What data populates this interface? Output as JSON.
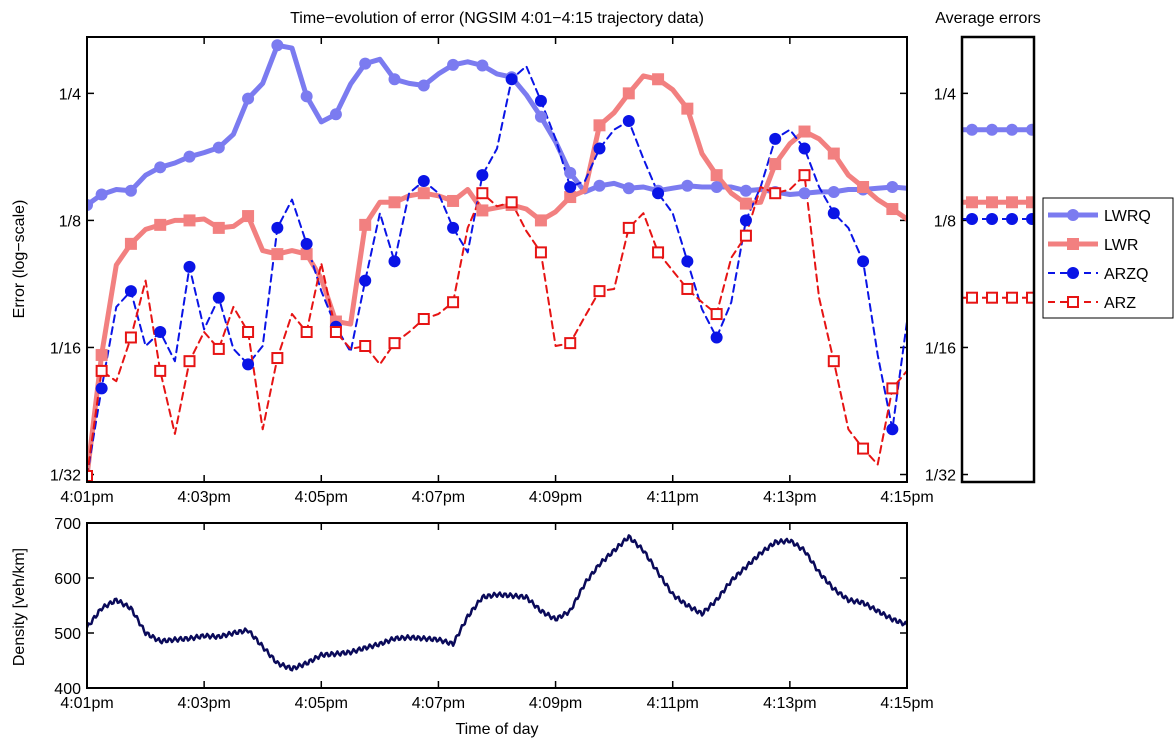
{
  "chart_data": [
    {
      "type": "line",
      "title": "Time−evolution of error (NGSIM 4:01−4:15 trajectory data)",
      "xlabel": "",
      "ylabel": "Error (log−scale)",
      "yscale": "log2",
      "ylim": [
        0.03,
        0.34
      ],
      "yticks": [
        0.03125,
        0.0625,
        0.125,
        0.25
      ],
      "yticklabels": [
        "1/32",
        "1/16",
        "1/8",
        "1/4"
      ],
      "xlim": [
        1,
        15
      ],
      "xticks": [
        1,
        3,
        5,
        7,
        9,
        11,
        13,
        15
      ],
      "xticklabels": [
        "4:01pm",
        "4:03pm",
        "4:05pm",
        "4:07pm",
        "4:09pm",
        "4:11pm",
        "4:13pm",
        "4:15pm"
      ],
      "x_unit": "minutes after 4:00pm",
      "legend_position": "right",
      "series": [
        {
          "name": "LWRQ",
          "color": "#7b7bf0",
          "linestyle": "solid",
          "marker": "circle-filled",
          "x": [
            1.0,
            1.25,
            1.5,
            1.75,
            2.0,
            2.25,
            2.5,
            2.75,
            3.0,
            3.25,
            3.5,
            3.75,
            4.0,
            4.25,
            4.5,
            4.75,
            5.0,
            5.25,
            5.5,
            5.75,
            6.0,
            6.25,
            6.5,
            6.75,
            7.0,
            7.25,
            7.5,
            7.75,
            8.0,
            8.25,
            8.5,
            8.75,
            9.0,
            9.25,
            9.5,
            9.75,
            10.0,
            10.25,
            10.5,
            10.75,
            11.0,
            11.25,
            11.5,
            11.75,
            12.0,
            12.25,
            12.5,
            12.75,
            13.0,
            13.25,
            13.5,
            13.75,
            14.0,
            14.25,
            14.5,
            14.75,
            15.0
          ],
          "y": [
            0.136,
            0.144,
            0.148,
            0.147,
            0.16,
            0.167,
            0.171,
            0.177,
            0.181,
            0.186,
            0.2,
            0.243,
            0.264,
            0.325,
            0.32,
            0.246,
            0.214,
            0.223,
            0.263,
            0.294,
            0.301,
            0.27,
            0.264,
            0.261,
            0.278,
            0.292,
            0.297,
            0.291,
            0.278,
            0.273,
            0.248,
            0.22,
            0.192,
            0.162,
            0.146,
            0.151,
            0.153,
            0.149,
            0.15,
            0.147,
            0.149,
            0.151,
            0.15,
            0.15,
            0.15,
            0.147,
            0.148,
            0.146,
            0.144,
            0.145,
            0.146,
            0.146,
            0.148,
            0.148,
            0.149,
            0.15,
            0.149
          ]
        },
        {
          "name": "LWR",
          "color": "#f28080",
          "linestyle": "solid",
          "marker": "square-filled",
          "x": [
            1.0,
            1.25,
            1.5,
            1.75,
            2.0,
            2.25,
            2.5,
            2.75,
            3.0,
            3.25,
            3.5,
            3.75,
            4.0,
            4.25,
            4.5,
            4.75,
            5.0,
            5.25,
            5.5,
            5.75,
            6.0,
            6.25,
            6.5,
            6.75,
            7.0,
            7.25,
            7.5,
            7.75,
            8.0,
            8.25,
            8.5,
            8.75,
            9.0,
            9.25,
            9.5,
            9.75,
            10.0,
            10.25,
            10.5,
            10.75,
            11.0,
            11.25,
            11.5,
            11.75,
            12.0,
            12.25,
            12.5,
            12.75,
            13.0,
            13.25,
            13.5,
            13.75,
            14.0,
            14.25,
            14.5,
            14.75,
            15.0
          ],
          "y": [
            0.031,
            0.06,
            0.098,
            0.11,
            0.119,
            0.122,
            0.125,
            0.125,
            0.126,
            0.12,
            0.121,
            0.128,
            0.106,
            0.104,
            0.106,
            0.104,
            0.091,
            0.072,
            0.071,
            0.122,
            0.138,
            0.138,
            0.143,
            0.145,
            0.143,
            0.139,
            0.148,
            0.132,
            0.134,
            0.136,
            0.133,
            0.125,
            0.131,
            0.142,
            0.147,
            0.21,
            0.225,
            0.25,
            0.275,
            0.27,
            0.255,
            0.23,
            0.18,
            0.16,
            0.145,
            0.137,
            0.138,
            0.17,
            0.19,
            0.203,
            0.195,
            0.18,
            0.16,
            0.15,
            0.14,
            0.133,
            0.126
          ]
        },
        {
          "name": "ARZQ",
          "color": "#0a14e6",
          "linestyle": "dashed",
          "marker": "circle-filled",
          "x": [
            1.0,
            1.25,
            1.5,
            1.75,
            2.0,
            2.25,
            2.5,
            2.75,
            3.0,
            3.25,
            3.5,
            3.75,
            4.0,
            4.25,
            4.5,
            4.75,
            5.0,
            5.25,
            5.5,
            5.75,
            6.0,
            6.25,
            6.5,
            6.75,
            7.0,
            7.25,
            7.5,
            7.75,
            8.0,
            8.25,
            8.5,
            8.75,
            9.0,
            9.25,
            9.5,
            9.75,
            10.0,
            10.25,
            10.5,
            10.75,
            11.0,
            11.25,
            11.5,
            11.75,
            12.0,
            12.25,
            12.5,
            12.75,
            13.0,
            13.25,
            13.5,
            13.75,
            14.0,
            14.25,
            14.5,
            14.75,
            15.0
          ],
          "y": [
            0.031,
            0.05,
            0.078,
            0.085,
            0.063,
            0.068,
            0.058,
            0.097,
            0.069,
            0.082,
            0.062,
            0.057,
            0.063,
            0.12,
            0.14,
            0.11,
            0.085,
            0.07,
            0.061,
            0.09,
            0.13,
            0.1,
            0.145,
            0.155,
            0.145,
            0.12,
            0.105,
            0.16,
            0.185,
            0.27,
            0.29,
            0.24,
            0.195,
            0.15,
            0.155,
            0.185,
            0.205,
            0.215,
            0.175,
            0.145,
            0.13,
            0.1,
            0.077,
            0.066,
            0.08,
            0.125,
            0.15,
            0.195,
            0.205,
            0.185,
            0.15,
            0.13,
            0.12,
            0.1,
            0.06,
            0.04,
            0.072
          ]
        },
        {
          "name": "ARZ",
          "color": "#e61414",
          "linestyle": "dashed",
          "marker": "square-open",
          "x": [
            1.0,
            1.25,
            1.5,
            1.75,
            2.0,
            2.25,
            2.5,
            2.75,
            3.0,
            3.25,
            3.5,
            3.75,
            4.0,
            4.25,
            4.5,
            4.75,
            5.0,
            5.25,
            5.5,
            5.75,
            6.0,
            6.25,
            6.5,
            6.75,
            7.0,
            7.25,
            7.5,
            7.75,
            8.0,
            8.25,
            8.5,
            8.75,
            9.0,
            9.25,
            9.5,
            9.75,
            10.0,
            10.25,
            10.5,
            10.75,
            11.0,
            11.25,
            11.5,
            11.75,
            12.0,
            12.25,
            12.5,
            12.75,
            13.0,
            13.25,
            13.5,
            13.75,
            14.0,
            14.25,
            14.5,
            14.75,
            15.0
          ],
          "y": [
            0.031,
            0.055,
            0.052,
            0.066,
            0.09,
            0.055,
            0.039,
            0.058,
            0.068,
            0.062,
            0.078,
            0.068,
            0.04,
            0.059,
            0.075,
            0.068,
            0.099,
            0.068,
            0.062,
            0.063,
            0.057,
            0.064,
            0.068,
            0.073,
            0.075,
            0.08,
            0.12,
            0.145,
            0.135,
            0.138,
            0.118,
            0.105,
            0.063,
            0.064,
            0.074,
            0.085,
            0.086,
            0.12,
            0.13,
            0.105,
            0.095,
            0.086,
            0.08,
            0.075,
            0.102,
            0.115,
            0.15,
            0.145,
            0.148,
            0.16,
            0.082,
            0.058,
            0.04,
            0.036,
            0.033,
            0.05,
            0.055
          ]
        }
      ]
    },
    {
      "type": "line",
      "title": "Average errors",
      "ylim": [
        0.03,
        0.34
      ],
      "yscale": "log2",
      "yticks": [
        0.03125,
        0.0625,
        0.125,
        0.25
      ],
      "yticklabels": [
        "1/32",
        "1/16",
        "1/8",
        "1/4"
      ],
      "series": [
        {
          "name": "LWRQ",
          "color": "#7b7bf0",
          "linestyle": "solid",
          "marker": "circle-filled",
          "value": 0.205
        },
        {
          "name": "LWR",
          "color": "#f28080",
          "linestyle": "solid",
          "marker": "square-filled",
          "value": 0.138
        },
        {
          "name": "ARZQ",
          "color": "#0a14e6",
          "linestyle": "dashed",
          "marker": "circle-filled",
          "value": 0.126
        },
        {
          "name": "ARZ",
          "color": "#e61414",
          "linestyle": "dashed",
          "marker": "square-open",
          "value": 0.082
        }
      ]
    },
    {
      "type": "line",
      "title": "",
      "xlabel": "Time of day",
      "ylabel": "Density [veh/km]",
      "ylim": [
        400,
        700
      ],
      "yticks": [
        400,
        500,
        600,
        700
      ],
      "yticklabels": [
        "400",
        "500",
        "600",
        "700"
      ],
      "xlim": [
        1,
        15
      ],
      "xticks": [
        1,
        3,
        5,
        7,
        9,
        11,
        13,
        15
      ],
      "xticklabels": [
        "4:01pm",
        "4:03pm",
        "4:05pm",
        "4:07pm",
        "4:09pm",
        "4:11pm",
        "4:13pm",
        "4:15pm"
      ],
      "x_unit": "minutes after 4:00pm",
      "series": [
        {
          "name": "",
          "color": "#0a0a5a",
          "x": [
            1.0,
            1.25,
            1.5,
            1.75,
            2.0,
            2.25,
            2.5,
            2.75,
            3.0,
            3.25,
            3.5,
            3.75,
            4.0,
            4.25,
            4.5,
            4.75,
            5.0,
            5.25,
            5.5,
            5.75,
            6.0,
            6.25,
            6.5,
            6.75,
            7.0,
            7.25,
            7.5,
            7.75,
            8.0,
            8.25,
            8.5,
            8.75,
            9.0,
            9.25,
            9.5,
            9.75,
            10.0,
            10.25,
            10.5,
            10.75,
            11.0,
            11.25,
            11.5,
            11.75,
            12.0,
            12.25,
            12.5,
            12.75,
            13.0,
            13.25,
            13.5,
            13.75,
            14.0,
            14.25,
            14.5,
            14.75,
            15.0
          ],
          "y": [
            510,
            545,
            560,
            545,
            500,
            485,
            488,
            490,
            495,
            493,
            500,
            505,
            475,
            445,
            435,
            445,
            460,
            462,
            465,
            473,
            480,
            490,
            492,
            490,
            488,
            480,
            530,
            565,
            570,
            568,
            565,
            540,
            525,
            540,
            590,
            625,
            650,
            675,
            650,
            610,
            570,
            550,
            535,
            560,
            595,
            620,
            645,
            665,
            668,
            650,
            610,
            580,
            560,
            555,
            540,
            525,
            515
          ]
        }
      ]
    }
  ]
}
